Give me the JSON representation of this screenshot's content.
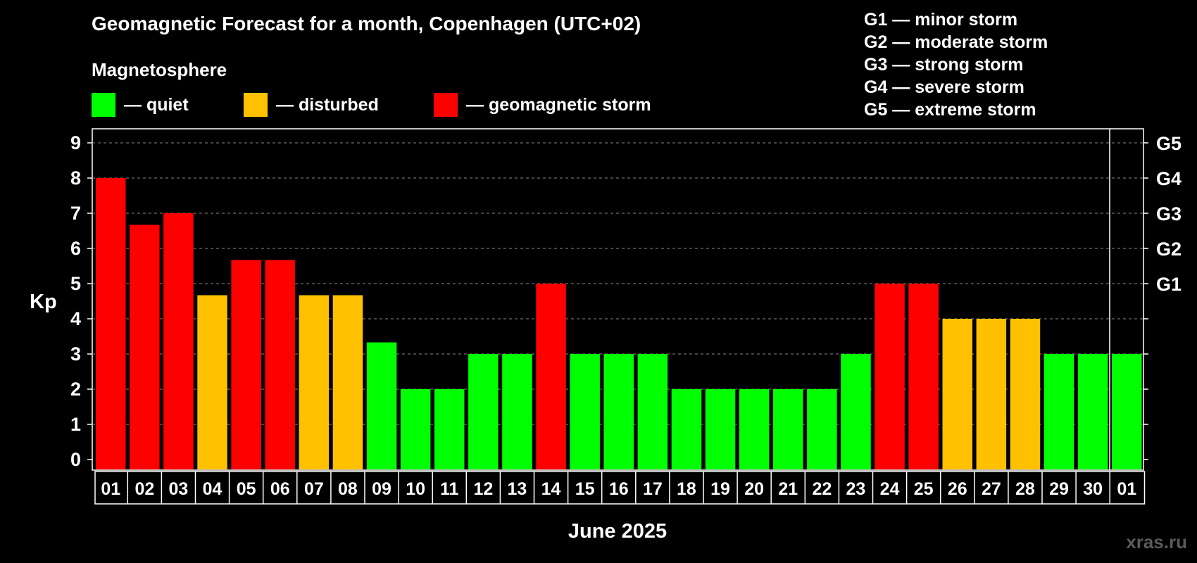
{
  "chart_data": {
    "type": "bar",
    "title": "Geomagnetic Forecast for a month, Copenhagen (UTC+02)",
    "subtitle": "Magnetosphere",
    "xlabel": "June 2025",
    "ylabel": "Kp",
    "ylim": [
      0,
      9
    ],
    "yticks": [
      "0",
      "1",
      "2",
      "3",
      "4",
      "5",
      "6",
      "7",
      "8",
      "9"
    ],
    "right_axis_ticks": [
      {
        "kp": 5,
        "label": "G1"
      },
      {
        "kp": 6,
        "label": "G2"
      },
      {
        "kp": 7,
        "label": "G3"
      },
      {
        "kp": 8,
        "label": "G4"
      },
      {
        "kp": 9,
        "label": "G5"
      }
    ],
    "categories": [
      "01",
      "02",
      "03",
      "04",
      "05",
      "06",
      "07",
      "08",
      "09",
      "10",
      "11",
      "12",
      "13",
      "14",
      "15",
      "16",
      "17",
      "18",
      "19",
      "20",
      "21",
      "22",
      "23",
      "24",
      "25",
      "26",
      "27",
      "28",
      "29",
      "30",
      "01"
    ],
    "values": [
      8,
      6.67,
      7,
      4.67,
      5.67,
      5.67,
      4.67,
      4.67,
      3.33,
      2,
      2,
      3,
      3,
      5,
      3,
      3,
      3,
      2,
      2,
      2,
      2,
      2,
      3,
      5,
      5,
      4,
      4,
      4,
      3,
      3,
      3
    ],
    "status": [
      "storm",
      "storm",
      "storm",
      "disturbed",
      "storm",
      "storm",
      "disturbed",
      "disturbed",
      "quiet",
      "quiet",
      "quiet",
      "quiet",
      "quiet",
      "storm",
      "quiet",
      "quiet",
      "quiet",
      "quiet",
      "quiet",
      "quiet",
      "quiet",
      "quiet",
      "quiet",
      "storm",
      "storm",
      "disturbed",
      "disturbed",
      "disturbed",
      "quiet",
      "quiet",
      "quiet"
    ],
    "grid": true,
    "legend": [
      {
        "key": "quiet",
        "label": "— quiet",
        "color": "#00ff00"
      },
      {
        "key": "disturbed",
        "label": "— disturbed",
        "color": "#ffc000"
      },
      {
        "key": "storm",
        "label": "— geomagnetic storm",
        "color": "#ff0000"
      }
    ]
  },
  "storm_levels": [
    "G1 — minor storm",
    "G2 — moderate storm",
    "G3 — strong storm",
    "G4 — severe storm",
    "G5 — extreme storm"
  ],
  "watermark": "xras.ru"
}
